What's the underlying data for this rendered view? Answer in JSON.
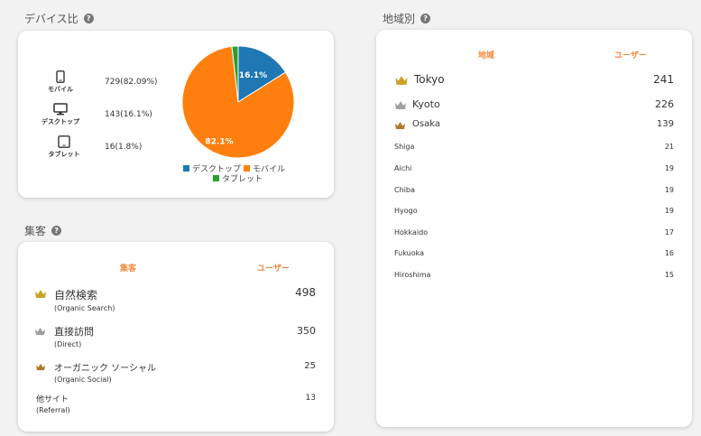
{
  "device": {
    "title": "デバイス比",
    "rows": [
      {
        "label": "モバイル",
        "value": "729(82.09%)"
      },
      {
        "label": "デスクトップ",
        "value": "143(16.1%)"
      },
      {
        "label": "タブレット",
        "value": "16(1.8%)"
      }
    ],
    "pie_labels": {
      "desktop": "16.1%",
      "mobile": "82.1%"
    },
    "legend": [
      "デスクトップ",
      "モバイル",
      "タブレット"
    ],
    "colors": {
      "desktop": "#1f77b4",
      "mobile": "#ff7f0e",
      "tablet": "#2ca02c"
    }
  },
  "chart_data": {
    "type": "pie",
    "categories": [
      "デスクトップ",
      "モバイル",
      "タブレット"
    ],
    "values": [
      16.1,
      82.1,
      1.8
    ],
    "legend_position": "bottom"
  },
  "acquisition": {
    "title": "集客",
    "col_channel": "集客",
    "col_users": "ユーザー",
    "rows": [
      {
        "name": "自然検索",
        "sub": "(Organic Search)",
        "users": "498",
        "crown": "gold"
      },
      {
        "name": "直接訪問",
        "sub": "(Direct)",
        "users": "350",
        "crown": "silver"
      },
      {
        "name": "オーガニック ソーシャル",
        "sub": "(Organic Social)",
        "users": "25",
        "crown": "bronze"
      },
      {
        "name": "他サイト",
        "sub": "(Referral)",
        "users": "13",
        "crown": "none"
      }
    ]
  },
  "region": {
    "title": "地域別",
    "col_region": "地域",
    "col_users": "ユーザー",
    "rows": [
      {
        "name": "Tokyo",
        "users": "241",
        "crown": "gold"
      },
      {
        "name": "Kyoto",
        "users": "226",
        "crown": "silver"
      },
      {
        "name": "Osaka",
        "users": "139",
        "crown": "bronze"
      },
      {
        "name": "Shiga",
        "users": "21"
      },
      {
        "name": "Aichi",
        "users": "19"
      },
      {
        "name": "Chiba",
        "users": "19"
      },
      {
        "name": "Hyogo",
        "users": "19"
      },
      {
        "name": "Hokkaido",
        "users": "17"
      },
      {
        "name": "Fukuoka",
        "users": "16"
      },
      {
        "name": "Hiroshima",
        "users": "15"
      }
    ]
  },
  "crown_colors": {
    "gold": "#c9a227",
    "silver": "#a0a0a0",
    "bronze": "#b07a2a"
  }
}
